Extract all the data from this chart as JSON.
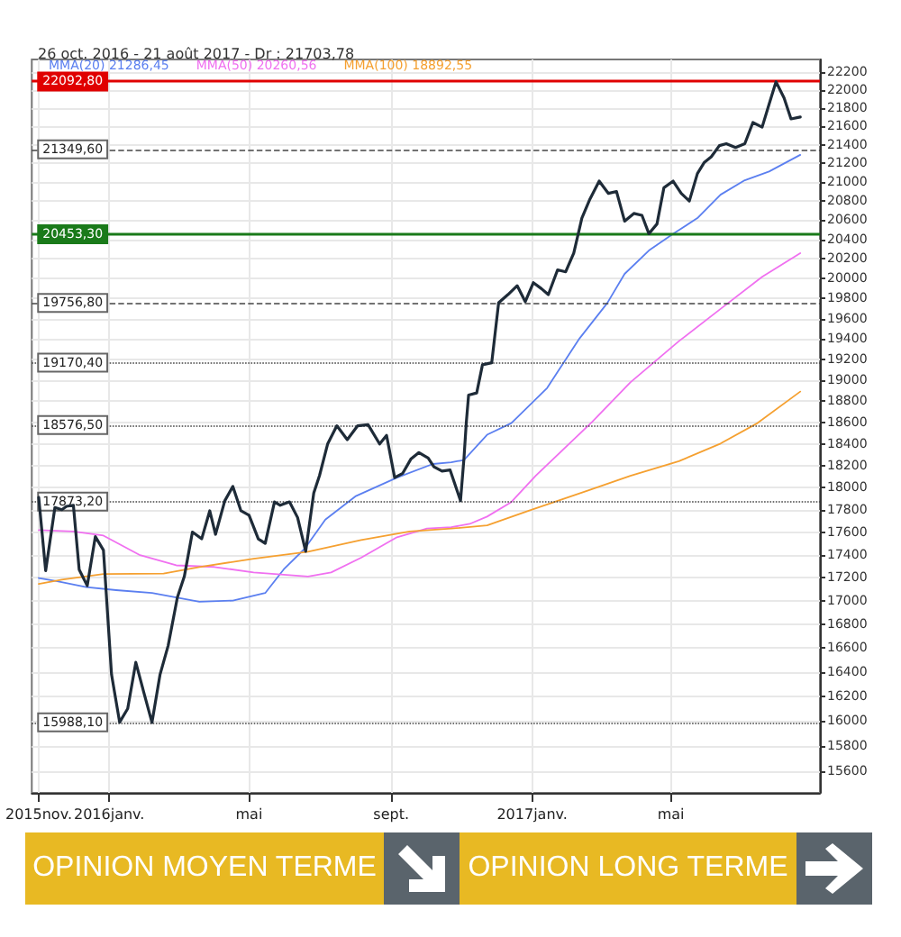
{
  "chart_data": {
    "type": "line",
    "title": "26 oct. 2016 - 21 août 2017 - Dr : 21703,78",
    "log": true,
    "grid": true,
    "legend": "top left",
    "marker": "none",
    "line_style": "solid",
    "xlim": [
      "2015-10-26",
      "2017-09-07"
    ],
    "xticks": [
      {
        "value": "2015-11-01",
        "label": "2015nov."
      },
      {
        "value": "2016-01-01",
        "label": "2016janv."
      },
      {
        "value": "2016-05-01",
        "label": "mai"
      },
      {
        "value": "2016-09-01",
        "label": "sept."
      },
      {
        "value": "2017-01-01",
        "label": "2017janv."
      },
      {
        "value": "2017-05-01",
        "label": "mai"
      }
    ],
    "ylim": [
      15430,
      22340
    ],
    "yticks": [
      15600,
      15800,
      16000,
      16200,
      16400,
      16600,
      16800,
      17000,
      17200,
      17400,
      17600,
      17800,
      18000,
      18200,
      18400,
      18600,
      18800,
      19000,
      19200,
      19400,
      19600,
      19800,
      20000,
      20200,
      20400,
      20600,
      20800,
      21000,
      21200,
      21400,
      21600,
      21800,
      22000,
      22200
    ],
    "series": [
      {
        "color": "#1e2b38",
        "x": [
          "2015-11-01",
          "2015-11-07",
          "2015-11-15",
          "2015-11-21",
          "2015-11-25",
          "2015-12-01",
          "2015-12-06",
          "2015-12-13",
          "2015-12-20",
          "2015-12-27",
          "2016-01-03",
          "2016-01-10",
          "2016-01-17",
          "2016-01-24",
          "2016-01-31",
          "2016-02-07",
          "2016-02-14",
          "2016-02-21",
          "2016-02-29",
          "2016-03-06",
          "2016-03-13",
          "2016-03-21",
          "2016-03-28",
          "2016-04-02",
          "2016-04-10",
          "2016-04-17",
          "2016-04-24",
          "2016-05-01",
          "2016-05-09",
          "2016-05-15",
          "2016-05-23",
          "2016-05-28",
          "2016-06-05",
          "2016-06-12",
          "2016-06-19",
          "2016-06-26",
          "2016-07-01",
          "2016-07-08",
          "2016-07-16",
          "2016-07-25",
          "2016-08-03",
          "2016-08-12",
          "2016-08-22",
          "2016-08-28",
          "2016-09-04",
          "2016-09-11",
          "2016-09-18",
          "2016-09-25",
          "2016-10-03",
          "2016-10-08",
          "2016-10-15",
          "2016-10-22",
          "2016-10-31",
          "2016-11-03",
          "2016-11-05",
          "2016-11-07",
          "2016-11-14",
          "2016-11-19",
          "2016-11-27",
          "2016-12-03",
          "2016-12-11",
          "2016-12-19",
          "2016-12-26",
          "2017-01-02",
          "2017-01-09",
          "2017-01-15",
          "2017-01-23",
          "2017-01-30",
          "2017-02-06",
          "2017-02-13",
          "2017-02-20",
          "2017-02-28",
          "2017-03-08",
          "2017-03-15",
          "2017-03-22",
          "2017-03-30",
          "2017-04-06",
          "2017-04-12",
          "2017-04-19",
          "2017-04-25",
          "2017-05-03",
          "2017-05-10",
          "2017-05-17",
          "2017-05-24",
          "2017-05-30",
          "2017-06-05",
          "2017-06-12",
          "2017-06-18",
          "2017-06-26",
          "2017-07-04",
          "2017-07-11",
          "2017-07-19",
          "2017-07-25",
          "2017-07-31",
          "2017-08-07",
          "2017-08-13",
          "2017-08-21"
        ],
        "values": [
          17910,
          17260,
          17820,
          17800,
          17830,
          17840,
          17270,
          17130,
          17560,
          17440,
          16380,
          15990,
          16100,
          16480,
          16230,
          15988,
          16380,
          16620,
          17030,
          17210,
          17600,
          17540,
          17790,
          17580,
          17880,
          18010,
          17790,
          17750,
          17540,
          17500,
          17870,
          17840,
          17870,
          17730,
          17430,
          17950,
          18110,
          18400,
          18570,
          18440,
          18570,
          18580,
          18400,
          18480,
          18090,
          18130,
          18260,
          18320,
          18270,
          18190,
          18150,
          18160,
          17880,
          18270,
          18600,
          18860,
          18880,
          19150,
          19170,
          19760,
          19840,
          19930,
          19770,
          19960,
          19900,
          19840,
          20090,
          20070,
          20260,
          20620,
          20820,
          21010,
          20880,
          20900,
          20590,
          20670,
          20650,
          20460,
          20560,
          20940,
          21010,
          20880,
          20800,
          21090,
          21210,
          21270,
          21390,
          21410,
          21370,
          21410,
          21640,
          21590,
          21840,
          22090,
          21910,
          21680,
          21700
        ]
      },
      {
        "name": "MMA(20) 21286,45",
        "color": "#5b7ff0",
        "x": [
          "2015-11-01",
          "2015-11-16",
          "2015-12-12",
          "2016-01-07",
          "2016-02-07",
          "2016-03-19",
          "2016-04-17",
          "2016-05-15",
          "2016-05-31",
          "2016-06-18",
          "2016-07-06",
          "2016-08-01",
          "2016-09-06",
          "2016-10-07",
          "2016-10-23",
          "2016-11-03",
          "2016-11-23",
          "2016-12-14",
          "2017-01-14",
          "2017-02-11",
          "2017-03-07",
          "2017-03-22",
          "2017-04-12",
          "2017-05-03",
          "2017-05-24",
          "2017-06-13",
          "2017-07-04",
          "2017-07-25",
          "2017-08-21"
        ],
        "values": [
          17197,
          17170,
          17118,
          17092,
          17067,
          16992,
          17002,
          17067,
          17272,
          17451,
          17711,
          17920,
          18090,
          18215,
          18231,
          18252,
          18486,
          18595,
          18928,
          19407,
          19756,
          20049,
          20287,
          20458,
          20622,
          20866,
          21019,
          21112,
          21290
        ]
      },
      {
        "name": "MMA(50) 20260,56",
        "color": "#f070f0",
        "x": [
          "2015-11-01",
          "2015-12-01",
          "2015-12-27",
          "2016-01-27",
          "2016-02-28",
          "2016-04-01",
          "2016-05-05",
          "2016-06-21",
          "2016-07-11",
          "2016-08-06",
          "2016-09-06",
          "2016-10-02",
          "2016-10-23",
          "2016-11-08",
          "2016-11-23",
          "2016-12-14",
          "2017-01-04",
          "2017-02-22",
          "2017-03-27",
          "2017-05-08",
          "2017-06-13",
          "2017-07-19",
          "2017-08-21"
        ],
        "values": [
          17617,
          17606,
          17569,
          17399,
          17307,
          17293,
          17245,
          17210,
          17245,
          17374,
          17554,
          17631,
          17643,
          17673,
          17738,
          17869,
          18107,
          18607,
          18981,
          19380,
          19698,
          20020,
          20260
        ]
      },
      {
        "name": "MMA(100) 18892,55",
        "color": "#f5a030",
        "x": [
          "2015-11-01",
          "2015-11-21",
          "2015-12-27",
          "2016-02-17",
          "2016-03-19",
          "2016-05-05",
          "2016-06-21",
          "2016-08-06",
          "2016-09-17",
          "2016-10-23",
          "2016-11-23",
          "2016-12-29",
          "2017-02-19",
          "2017-03-27",
          "2017-05-08",
          "2017-06-13",
          "2017-07-15",
          "2017-08-21"
        ],
        "values": [
          17145,
          17182,
          17231,
          17236,
          17293,
          17365,
          17427,
          17529,
          17606,
          17631,
          17660,
          17790,
          17975,
          18107,
          18241,
          18404,
          18595,
          18893
        ]
      }
    ],
    "ref_lines": [
      {
        "axis": "y",
        "value": 22092.8,
        "label": "22092,80",
        "color": "#e00000",
        "line_style": "solid"
      },
      {
        "axis": "y",
        "value": 21349.6,
        "label": "21349,60",
        "line_style": "dashed"
      },
      {
        "axis": "y",
        "value": 20453.3,
        "label": "20453,30",
        "color": "#1a7a1a",
        "line_style": "solid"
      },
      {
        "axis": "y",
        "value": 19756.8,
        "label": "19756,80",
        "line_style": "dashed"
      },
      {
        "axis": "y",
        "value": 19170.4,
        "label": "19170,40",
        "line_style": "dotted"
      },
      {
        "axis": "y",
        "value": 18576.5,
        "label": "18576,50",
        "line_style": "dotted"
      },
      {
        "axis": "y",
        "value": 17873.2,
        "label": "17873,20",
        "line_style": "dotted"
      },
      {
        "axis": "y",
        "value": 15988.1,
        "label": "15988,10",
        "line_style": "dotted"
      }
    ],
    "annotations": [
      "OPINION MOYEN TERME",
      "OPINION LONG TERME"
    ]
  }
}
